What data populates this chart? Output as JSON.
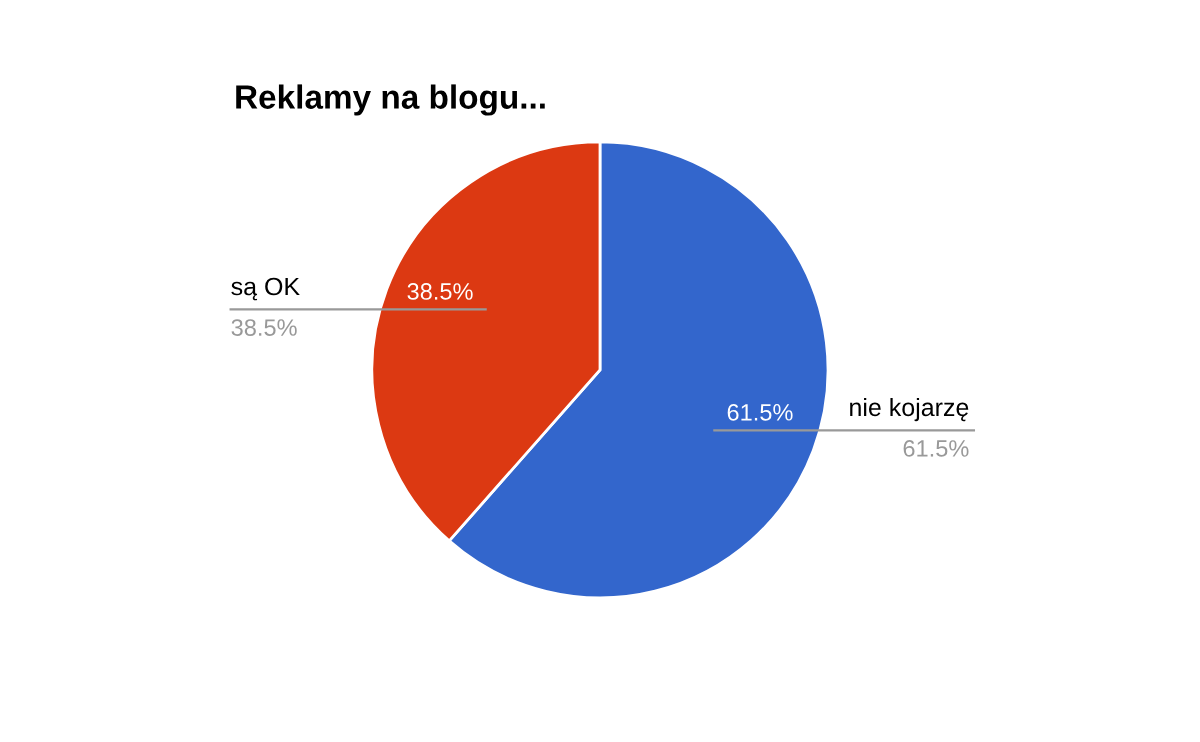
{
  "chart_data": {
    "type": "pie",
    "title": "Reklamy na blogu...",
    "categories": [
      "nie kojarzę",
      "są OK"
    ],
    "values": [
      61.5,
      38.5
    ],
    "colors": [
      "#3366cc",
      "#dc3912"
    ],
    "value_labels": [
      "61.5%",
      "38.5%"
    ]
  }
}
